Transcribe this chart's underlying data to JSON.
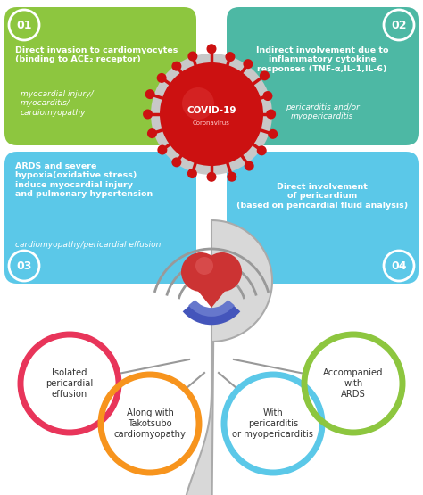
{
  "box01_title": "Direct invasion to cardiomyocytes\n(binding to ACE₂ receptor)",
  "box01_sub": "myocardial injury/\nmyocarditis/\ncardiomyopathy",
  "box01_color": "#8dc63f",
  "box01_num": "01",
  "box02_title": "Indirect involvement due to\ninflammatory cytokine\nresponses (TNF-α,IL-1,IL-6)",
  "box02_sub": "pericarditis and/or\nmyopericarditis",
  "box02_color": "#4db8a4",
  "box02_num": "02",
  "box03_title": "ARDS and severe\nhypoxia(oxidative stress)\ninduce myocardial injury\nand pulmonary hypertension",
  "box03_sub": "cardiomyopathy/pericardial effusion",
  "box03_color": "#5bc8e8",
  "box03_num": "03",
  "box04_title": "Direct involvement\nof pericardium\n(based on pericardial fluid analysis)",
  "box04_color": "#5bc8e8",
  "box04_num": "04",
  "circle1_label": "Isolated\npericardial\neffusion",
  "circle1_color_top": "#e8355a",
  "circle1_color_bot": "#f06292",
  "circle2_label": "Along with\nTakotsubo\ncardiomyopathy",
  "circle2_color": "#f7941d",
  "circle3_label": "With\npericarditis\nor myopericarditis",
  "circle3_color": "#5bc8e8",
  "circle4_label": "Accompanied\nwith\nARDS",
  "circle4_color": "#8dc63f",
  "bg_color": "#ffffff",
  "text_dark": "#333333",
  "text_white": "#ffffff",
  "gray_line": "#999999",
  "virus_red": "#cc1111",
  "virus_dark": "#aa0000"
}
